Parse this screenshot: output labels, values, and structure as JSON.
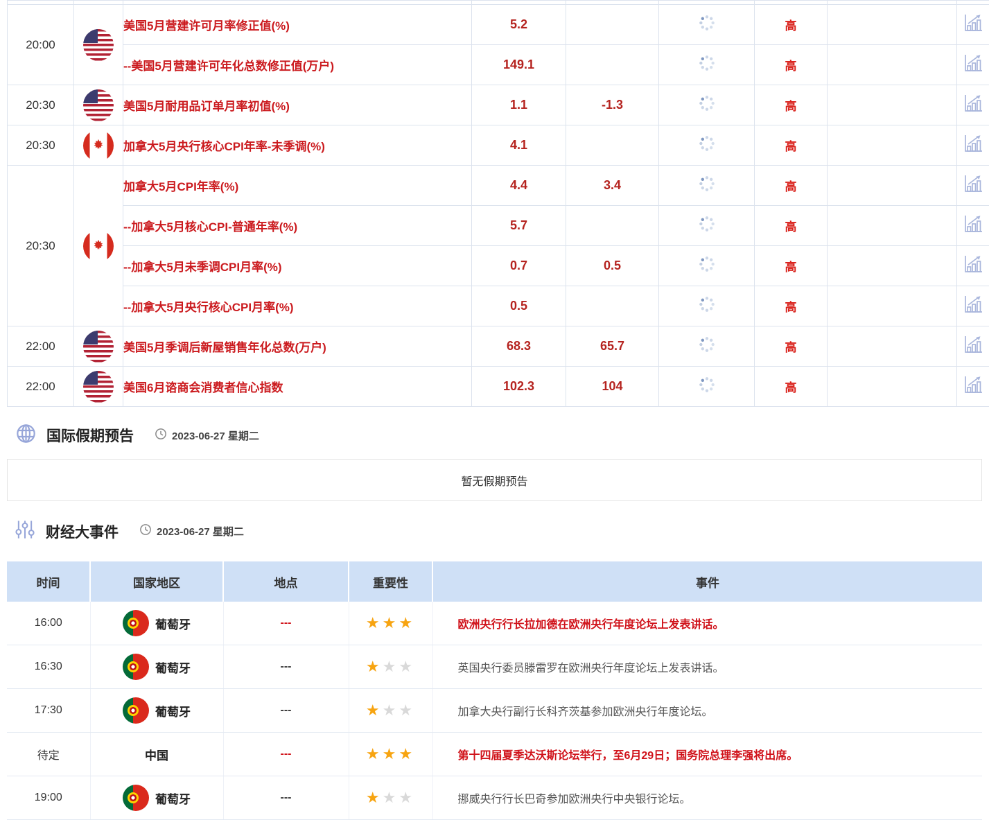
{
  "economic_calendar": {
    "icons": {
      "status": "loading-spinner-icon",
      "action": "bar-chart-icon"
    },
    "importance_label": "高",
    "groups": [
      {
        "time": "20:00",
        "country_flag": "us-flag-icon",
        "rows": [
          {
            "name": "美国5月营建许可月率修正值(%)",
            "actual": "5.2",
            "forecast": "",
            "importance": "高"
          },
          {
            "name": "--美国5月营建许可年化总数修正值(万户)",
            "actual": "149.1",
            "forecast": "",
            "importance": "高"
          }
        ]
      },
      {
        "time": "20:30",
        "country_flag": "us-flag-icon",
        "rows": [
          {
            "name": "美国5月耐用品订单月率初值(%)",
            "actual": "1.1",
            "forecast": "-1.3",
            "importance": "高"
          }
        ]
      },
      {
        "time": "20:30",
        "country_flag": "canada-flag-icon",
        "rows": [
          {
            "name": "加拿大5月央行核心CPI年率-未季调(%)",
            "actual": "4.1",
            "forecast": "",
            "importance": "高"
          }
        ]
      },
      {
        "time": "20:30",
        "country_flag": "canada-flag-icon",
        "rows": [
          {
            "name": "加拿大5月CPI年率(%)",
            "actual": "4.4",
            "forecast": "3.4",
            "importance": "高"
          },
          {
            "name": "--加拿大5月核心CPI-普通年率(%)",
            "actual": "5.7",
            "forecast": "",
            "importance": "高"
          },
          {
            "name": "--加拿大5月未季调CPI月率(%)",
            "actual": "0.7",
            "forecast": "0.5",
            "importance": "高"
          },
          {
            "name": "--加拿大5月央行核心CPI月率(%)",
            "actual": "0.5",
            "forecast": "",
            "importance": "高"
          }
        ]
      },
      {
        "time": "22:00",
        "country_flag": "us-flag-icon",
        "rows": [
          {
            "name": "美国5月季调后新屋销售年化总数(万户)",
            "actual": "68.3",
            "forecast": "65.7",
            "importance": "高"
          }
        ]
      },
      {
        "time": "22:00",
        "country_flag": "us-flag-icon",
        "rows": [
          {
            "name": "美国6月谘商会消费者信心指数",
            "actual": "102.3",
            "forecast": "104",
            "importance": "高"
          }
        ]
      }
    ]
  },
  "holiday_section": {
    "icon": "globe-icon",
    "title": "国际假期预告",
    "date_icon": "clock-icon",
    "date": "2023-06-27 星期二",
    "empty_message": "暂无假期预告"
  },
  "events_section": {
    "icon": "sliders-icon",
    "title": "财经大事件",
    "date_icon": "clock-icon",
    "date": "2023-06-27 星期二",
    "table": {
      "headers": [
        "时间",
        "国家地区",
        "地点",
        "重要性",
        "事件"
      ],
      "max_stars": 3,
      "rows": [
        {
          "time": "16:00",
          "country": "葡萄牙",
          "flag": "portugal-flag-icon",
          "location": "---",
          "stars": 3,
          "event": "欧洲央行行长拉加德在欧洲央行年度论坛上发表讲话。",
          "highlight": true
        },
        {
          "time": "16:30",
          "country": "葡萄牙",
          "flag": "portugal-flag-icon",
          "location": "---",
          "stars": 1,
          "event": "英国央行委员滕雷罗在欧洲央行年度论坛上发表讲话。",
          "highlight": false
        },
        {
          "time": "17:30",
          "country": "葡萄牙",
          "flag": "portugal-flag-icon",
          "location": "---",
          "stars": 1,
          "event": "加拿大央行副行长科齐茨基参加欧洲央行年度论坛。",
          "highlight": false
        },
        {
          "time": "待定",
          "country": "中国",
          "flag": null,
          "location": "---",
          "stars": 3,
          "event": "第十四届夏季达沃斯论坛举行，至6月29日；国务院总理李强将出席。",
          "highlight": true
        },
        {
          "time": "19:00",
          "country": "葡萄牙",
          "flag": "portugal-flag-icon",
          "location": "---",
          "stars": 1,
          "event": "挪威央行行长巴奇参加欧洲央行中央银行论坛。",
          "highlight": false
        }
      ]
    }
  },
  "colors": {
    "indicator_red": "#cb1a1e",
    "value_red": "#b5231f",
    "importance_red": "#d9201a",
    "event_highlight_red": "#d0121a",
    "star_gold": "#f7a411",
    "star_gray": "#d9d9d9",
    "table_header_blue": "#cfe0f6",
    "table_border_blue": "#dce3ee",
    "icon_periwinkle": "#97a6d9",
    "chart_icon_periwinkle": "#a9b6dc"
  }
}
